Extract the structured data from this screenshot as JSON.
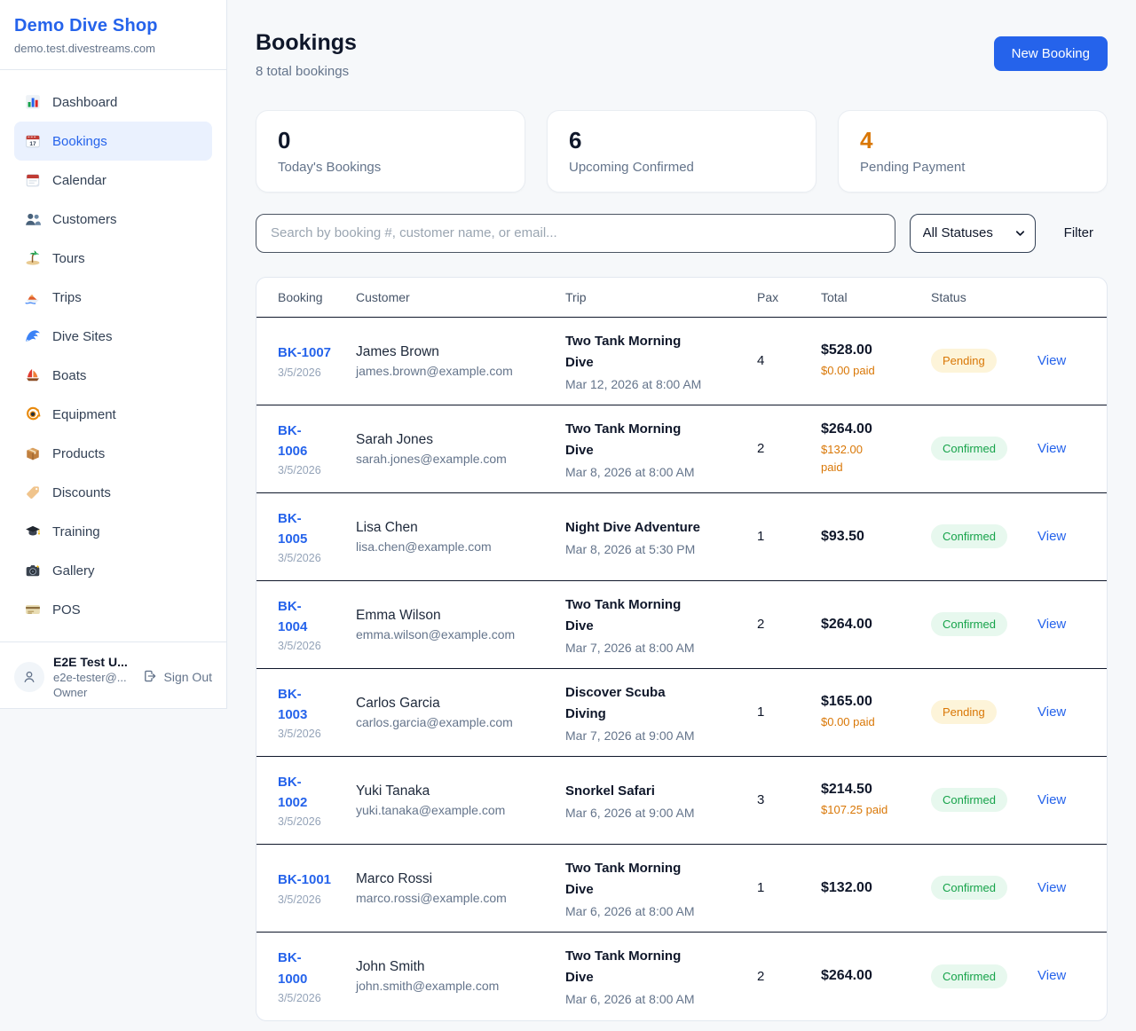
{
  "colors": {
    "accent": "#2563eb",
    "pending_text": "#d97706",
    "pending_bg": "#fdf4d9",
    "confirmed_text": "#16a34a",
    "confirmed_bg": "#e7f8ee",
    "row_divider": "#0f172a"
  },
  "sidebar": {
    "brand": {
      "name": "Demo Dive Shop",
      "domain": "demo.test.divestreams.com"
    },
    "items": [
      {
        "label": "Dashboard",
        "icon": "bar-chart-icon",
        "active": false
      },
      {
        "label": "Bookings",
        "icon": "calendar-17-icon",
        "active": true
      },
      {
        "label": "Calendar",
        "icon": "calendar-pad-icon",
        "active": false
      },
      {
        "label": "Customers",
        "icon": "people-icon",
        "active": false
      },
      {
        "label": "Tours",
        "icon": "island-icon",
        "active": false
      },
      {
        "label": "Trips",
        "icon": "speedboat-icon",
        "active": false
      },
      {
        "label": "Dive Sites",
        "icon": "wave-icon",
        "active": false
      },
      {
        "label": "Boats",
        "icon": "sailboat-icon",
        "active": false
      },
      {
        "label": "Equipment",
        "icon": "diving-mask-icon",
        "active": false
      },
      {
        "label": "Products",
        "icon": "package-icon",
        "active": false
      },
      {
        "label": "Discounts",
        "icon": "tag-icon",
        "active": false
      },
      {
        "label": "Training",
        "icon": "graduation-cap-icon",
        "active": false
      },
      {
        "label": "Gallery",
        "icon": "camera-icon",
        "active": false
      },
      {
        "label": "POS",
        "icon": "credit-card-icon",
        "active": false
      }
    ],
    "user": {
      "name": "E2E Test U...",
      "email": "e2e-tester@...",
      "role": "Owner",
      "signout_label": "Sign Out"
    }
  },
  "header": {
    "title": "Bookings",
    "subtitle": "8 total bookings",
    "new_booking_label": "New Booking"
  },
  "stats": [
    {
      "value": "0",
      "label": "Today's Bookings",
      "color": "#0f172a"
    },
    {
      "value": "6",
      "label": "Upcoming Confirmed",
      "color": "#0f172a"
    },
    {
      "value": "4",
      "label": "Pending Payment",
      "color": "#d97706"
    }
  ],
  "filters": {
    "search_placeholder": "Search by booking #, customer name, or email...",
    "status_selected": "All Statuses",
    "filter_label": "Filter"
  },
  "table": {
    "columns": [
      "Booking",
      "Customer",
      "Trip",
      "Pax",
      "Total",
      "Status"
    ],
    "view_label": "View",
    "rows": [
      {
        "id": "BK-1007",
        "date": "3/5/2026",
        "customer": "James Brown",
        "email": "james.brown@example.com",
        "trip": "Two Tank Morning\nDive",
        "trip_datetime": "Mar 12, 2026 at 8:00 AM",
        "pax": "4",
        "total": "$528.00",
        "paid": "$0.00 paid",
        "status": "Pending"
      },
      {
        "id": "BK-\n1006",
        "date": "3/5/2026",
        "customer": "Sarah Jones",
        "email": "sarah.jones@example.com",
        "trip": "Two Tank Morning\nDive",
        "trip_datetime": "Mar 8, 2026 at 8:00 AM",
        "pax": "2",
        "total": "$264.00",
        "paid": "$132.00\npaid",
        "status": "Confirmed"
      },
      {
        "id": "BK-\n1005",
        "date": "3/5/2026",
        "customer": "Lisa Chen",
        "email": "lisa.chen@example.com",
        "trip": "Night Dive Adventure",
        "trip_datetime": "Mar 8, 2026 at 5:30 PM",
        "pax": "1",
        "total": "$93.50",
        "paid": null,
        "status": "Confirmed"
      },
      {
        "id": "BK-\n1004",
        "date": "3/5/2026",
        "customer": "Emma Wilson",
        "email": "emma.wilson@example.com",
        "trip": "Two Tank Morning\nDive",
        "trip_datetime": "Mar 7, 2026 at 8:00 AM",
        "pax": "2",
        "total": "$264.00",
        "paid": null,
        "status": "Confirmed"
      },
      {
        "id": "BK-\n1003",
        "date": "3/5/2026",
        "customer": "Carlos Garcia",
        "email": "carlos.garcia@example.com",
        "trip": "Discover Scuba\nDiving",
        "trip_datetime": "Mar 7, 2026 at 9:00 AM",
        "pax": "1",
        "total": "$165.00",
        "paid": "$0.00 paid",
        "status": "Pending"
      },
      {
        "id": "BK-\n1002",
        "date": "3/5/2026",
        "customer": "Yuki Tanaka",
        "email": "yuki.tanaka@example.com",
        "trip": "Snorkel Safari",
        "trip_datetime": "Mar 6, 2026 at 9:00 AM",
        "pax": "3",
        "total": "$214.50",
        "paid": "$107.25 paid",
        "status": "Confirmed"
      },
      {
        "id": "BK-1001",
        "date": "3/5/2026",
        "customer": "Marco Rossi",
        "email": "marco.rossi@example.com",
        "trip": "Two Tank Morning\nDive",
        "trip_datetime": "Mar 6, 2026 at 8:00 AM",
        "pax": "1",
        "total": "$132.00",
        "paid": null,
        "status": "Confirmed"
      },
      {
        "id": "BK-\n1000",
        "date": "3/5/2026",
        "customer": "John Smith",
        "email": "john.smith@example.com",
        "trip": "Two Tank Morning\nDive",
        "trip_datetime": "Mar 6, 2026 at 8:00 AM",
        "pax": "2",
        "total": "$264.00",
        "paid": null,
        "status": "Confirmed"
      }
    ]
  }
}
